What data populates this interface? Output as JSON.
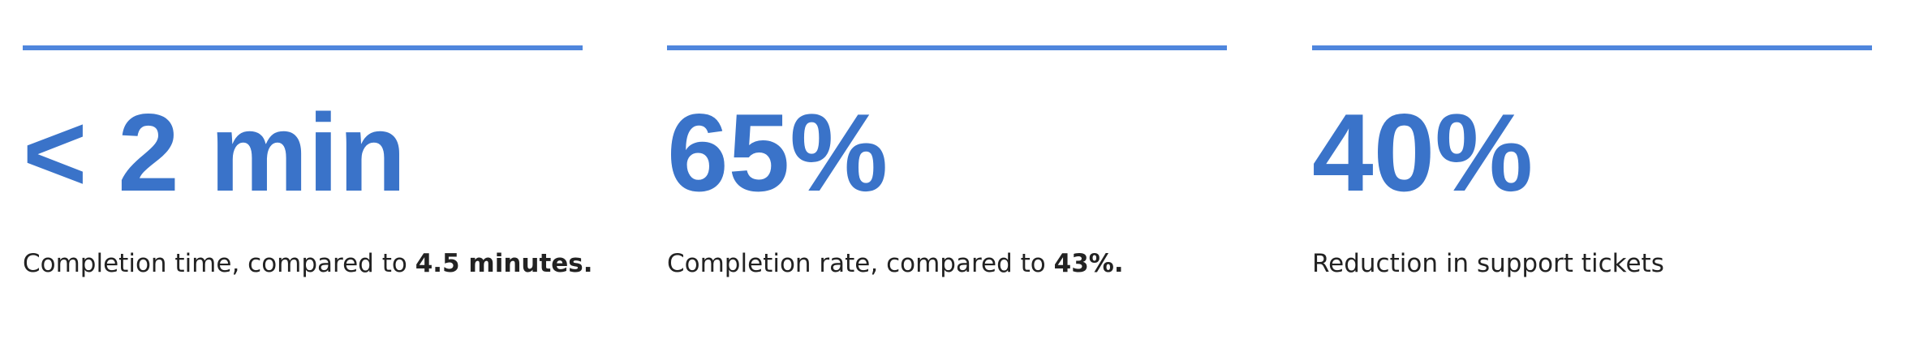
{
  "stats": [
    {
      "value": "< 2 min",
      "caption": "Completion time, compared to ",
      "caption_bold": "4.5 minutes."
    },
    {
      "value": "65%",
      "caption": "Completion rate, compared to ",
      "caption_bold": "43%."
    },
    {
      "value": "40%",
      "caption": "Reduction in support tickets",
      "caption_bold": ""
    }
  ],
  "colors": {
    "accent_bar": "#4f86dd",
    "value_text": "#3a73c9",
    "caption_text": "#222222"
  }
}
